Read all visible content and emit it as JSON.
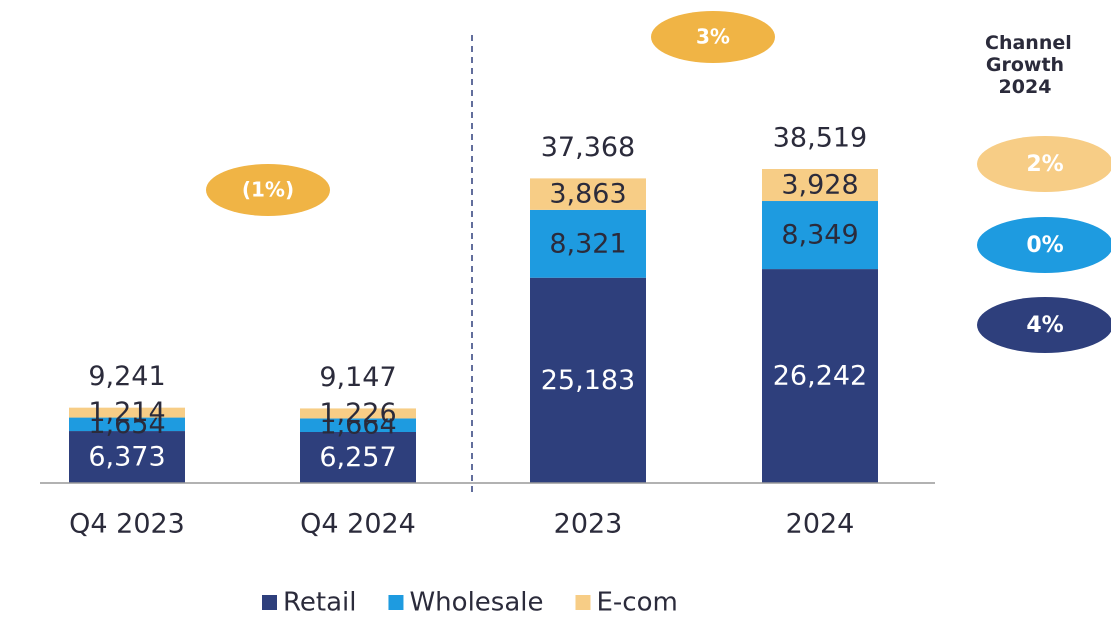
{
  "chart_data": {
    "type": "stacked_bar",
    "categories": [
      "Q4 2023",
      "Q4 2024",
      "2023",
      "2024"
    ],
    "series": [
      {
        "name": "Retail",
        "color": "#2e3f7c",
        "values": [
          6373,
          6257,
          25183,
          26242
        ],
        "value_labels": [
          "6,373",
          "6,257",
          "25,183",
          "26,242"
        ]
      },
      {
        "name": "Wholesale",
        "color": "#1e9be0",
        "values": [
          1654,
          1664,
          8321,
          8349
        ],
        "value_labels": [
          "1,654",
          "1,664",
          "8,321",
          "8,349"
        ]
      },
      {
        "name": "E-com",
        "color": "#f7cd86",
        "values": [
          1214,
          1226,
          3863,
          3928
        ],
        "value_labels": [
          "1,214",
          "1,226",
          "3,863",
          "3,928"
        ]
      }
    ],
    "totals": [
      9241,
      9147,
      37368,
      38519
    ],
    "total_labels": [
      "9,241",
      "9,147",
      "37,368",
      "38,519"
    ],
    "annotations": [
      {
        "text": "(1%)",
        "value": -1,
        "color": "#f0b445"
      },
      {
        "text": "3%",
        "value": 3,
        "color": "#f0b445"
      }
    ],
    "channel_growth": {
      "title": "Channel Growth 2024",
      "values": [
        2,
        0,
        4
      ],
      "value_labels": [
        "2%",
        "0%",
        "4%"
      ]
    },
    "legend": "bottom"
  }
}
